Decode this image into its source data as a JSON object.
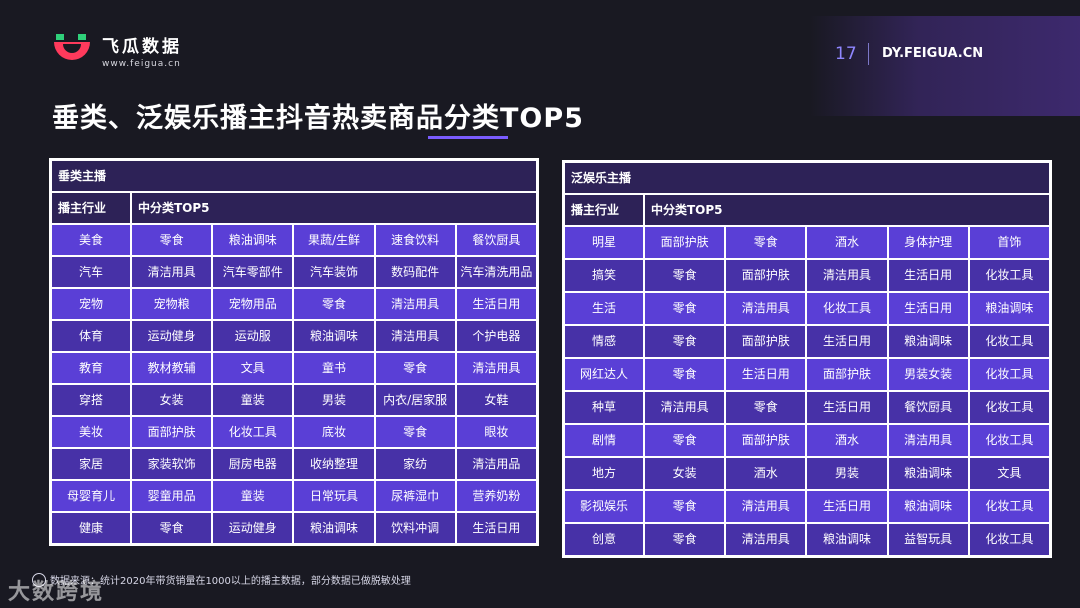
{
  "header": {
    "brand_name": "飞瓜数据",
    "brand_url": "www.feigua.cn",
    "page_number": "17",
    "site": "DY.FEIGUA.CN",
    "brand_colors": {
      "green": "#2fd07a",
      "red": "#ff3a5c",
      "accent": "#7a5cff"
    }
  },
  "title": "垂类、泛娱乐播主抖音热卖商品分类TOP5",
  "left_table": {
    "caption": "垂类主播",
    "col_industry": "播主行业",
    "col_top5": "中分类TOP5",
    "rows": [
      [
        "美食",
        "零食",
        "粮油调味",
        "果蔬/生鲜",
        "速食饮料",
        "餐饮厨具"
      ],
      [
        "汽车",
        "清洁用具",
        "汽车零部件",
        "汽车装饰",
        "数码配件",
        "汽车清洗用品"
      ],
      [
        "宠物",
        "宠物粮",
        "宠物用品",
        "零食",
        "清洁用具",
        "生活日用"
      ],
      [
        "体育",
        "运动健身",
        "运动服",
        "粮油调味",
        "清洁用具",
        "个护电器"
      ],
      [
        "教育",
        "教材教辅",
        "文具",
        "童书",
        "零食",
        "清洁用具"
      ],
      [
        "穿搭",
        "女装",
        "童装",
        "男装",
        "内衣/居家服",
        "女鞋"
      ],
      [
        "美妆",
        "面部护肤",
        "化妆工具",
        "底妆",
        "零食",
        "眼妆"
      ],
      [
        "家居",
        "家装软饰",
        "厨房电器",
        "收纳整理",
        "家纺",
        "清洁用品"
      ],
      [
        "母婴育儿",
        "婴童用品",
        "童装",
        "日常玩具",
        "尿裤湿巾",
        "营养奶粉"
      ],
      [
        "健康",
        "零食",
        "运动健身",
        "粮油调味",
        "饮料冲调",
        "生活日用"
      ]
    ]
  },
  "right_table": {
    "caption": "泛娱乐主播",
    "col_industry": "播主行业",
    "col_top5": "中分类TOP5",
    "rows": [
      [
        "明星",
        "面部护肤",
        "零食",
        "酒水",
        "身体护理",
        "首饰"
      ],
      [
        "搞笑",
        "零食",
        "面部护肤",
        "清洁用具",
        "生活日用",
        "化妆工具"
      ],
      [
        "生活",
        "零食",
        "清洁用具",
        "化妆工具",
        "生活日用",
        "粮油调味"
      ],
      [
        "情感",
        "零食",
        "面部护肤",
        "生活日用",
        "粮油调味",
        "化妆工具"
      ],
      [
        "网红达人",
        "零食",
        "生活日用",
        "面部护肤",
        "男装女装",
        "化妆工具"
      ],
      [
        "种草",
        "清洁用具",
        "零食",
        "生活日用",
        "餐饮厨具",
        "化妆工具"
      ],
      [
        "剧情",
        "零食",
        "面部护肤",
        "酒水",
        "清洁用具",
        "化妆工具"
      ],
      [
        "地方",
        "女装",
        "酒水",
        "男装",
        "粮油调味",
        "文具"
      ],
      [
        "影视娱乐",
        "零食",
        "清洁用具",
        "生活日用",
        "粮油调味",
        "化妆工具"
      ],
      [
        "创意",
        "零食",
        "清洁用具",
        "粮油调味",
        "益智玩具",
        "化妆工具"
      ]
    ]
  },
  "footer": {
    "source_note": "数据来源：统计2020年带货销量在1000以上的播主数据，部分数据已做脱敏处理",
    "watermark": "大数跨境"
  }
}
